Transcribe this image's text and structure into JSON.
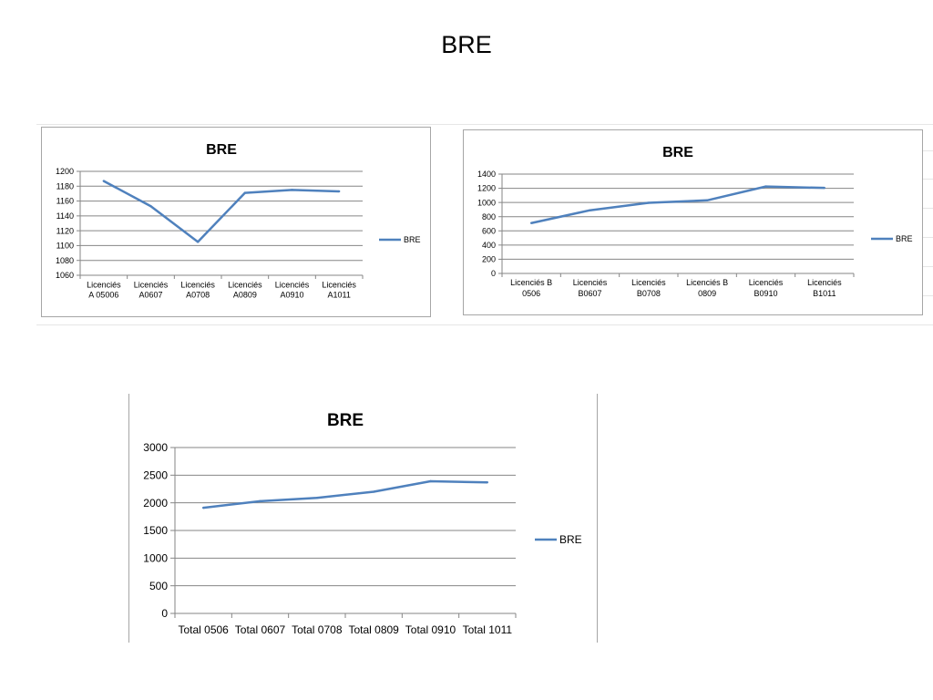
{
  "slide": {
    "title": "BRE"
  },
  "chart_data": [
    {
      "id": "a",
      "type": "line",
      "title": "BRE",
      "categories": [
        [
          "Licenciés",
          "A 05006"
        ],
        [
          "Licenciés",
          "A0607"
        ],
        [
          "Licenciés",
          "A0708"
        ],
        [
          "Licenciés",
          "A0809"
        ],
        [
          "Licenciés",
          "A0910"
        ],
        [
          "Licenciés",
          "A1011"
        ]
      ],
      "series": [
        {
          "name": "BRE",
          "values": [
            1187,
            1153,
            1105,
            1171,
            1175,
            1173
          ]
        }
      ],
      "ylim": [
        1060,
        1200
      ],
      "yticks": [
        1060,
        1080,
        1100,
        1120,
        1140,
        1160,
        1180,
        1200
      ],
      "grid": true,
      "legend": "right",
      "color": "#4f81bd"
    },
    {
      "id": "b",
      "type": "line",
      "title": "BRE",
      "categories": [
        [
          "Licenciés B",
          "0506"
        ],
        [
          "Licenciés",
          "B0607"
        ],
        [
          "Licenciés",
          "B0708"
        ],
        [
          "Licenciés B",
          "0809"
        ],
        [
          "Licenciés",
          "B0910"
        ],
        [
          "Licenciés",
          "B1011"
        ]
      ],
      "series": [
        {
          "name": "BRE",
          "values": [
            710,
            890,
            995,
            1030,
            1225,
            1205
          ]
        }
      ],
      "ylim": [
        0,
        1400
      ],
      "yticks": [
        0,
        200,
        400,
        600,
        800,
        1000,
        1200,
        1400
      ],
      "grid": true,
      "legend": "right",
      "color": "#4f81bd"
    },
    {
      "id": "t",
      "type": "line",
      "title": "BRE",
      "categories": [
        [
          "Total 0506"
        ],
        [
          "Total 0607"
        ],
        [
          "Total 0708"
        ],
        [
          "Total 0809"
        ],
        [
          "Total 0910"
        ],
        [
          "Total 1011"
        ]
      ],
      "series": [
        {
          "name": "BRE",
          "values": [
            1910,
            2030,
            2090,
            2200,
            2390,
            2370
          ]
        }
      ],
      "ylim": [
        0,
        3000
      ],
      "yticks": [
        0,
        500,
        1000,
        1500,
        2000,
        2500,
        3000
      ],
      "grid": true,
      "legend": "right",
      "color": "#4f81bd"
    }
  ]
}
